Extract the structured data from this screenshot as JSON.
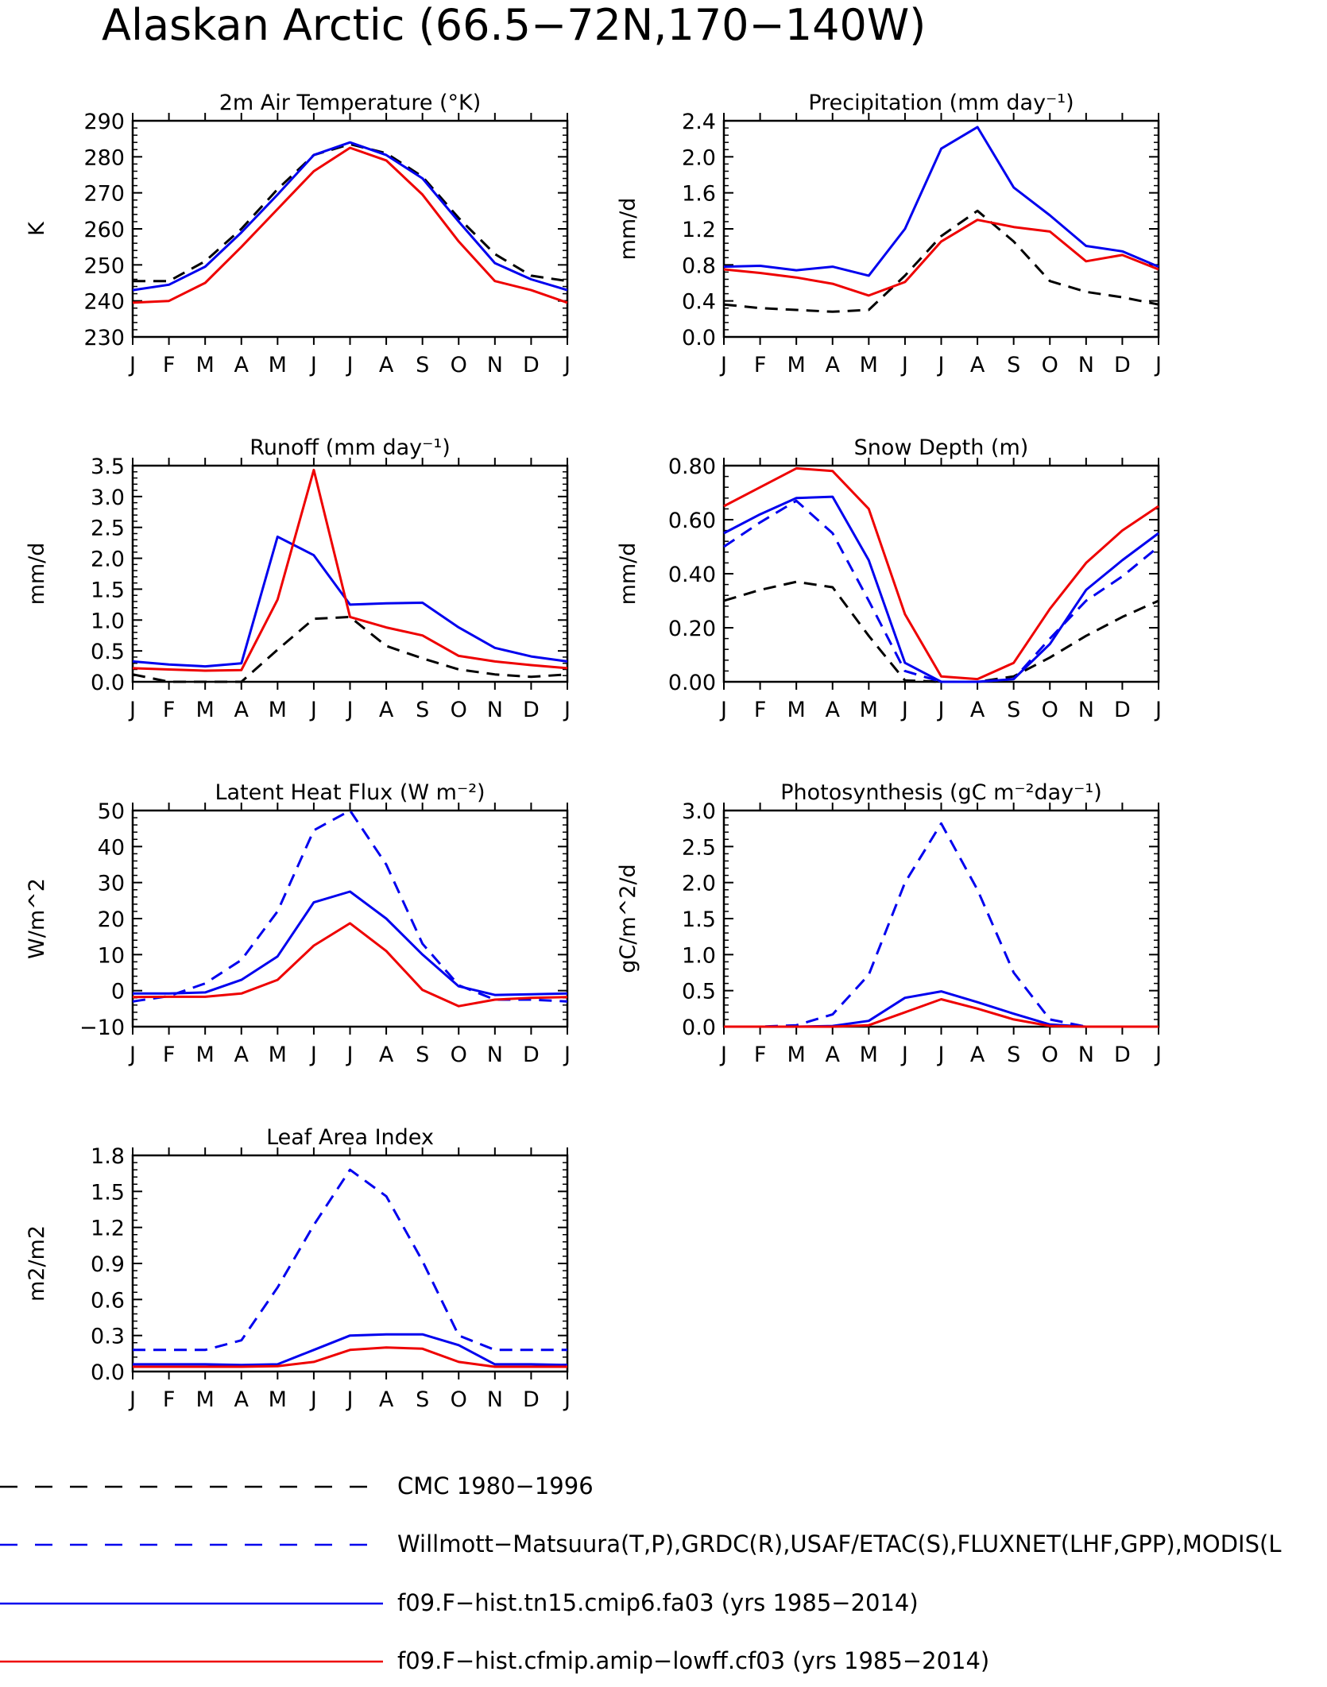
{
  "page_title": "Alaskan Arctic (66.5−72N,170−140W)",
  "series_styles": [
    {
      "key": "obs1",
      "color": "#000000",
      "dash": true
    },
    {
      "key": "obs2",
      "color": "#0000ee",
      "dash": true
    },
    {
      "key": "m1",
      "color": "#0000ee",
      "dash": false
    },
    {
      "key": "m2",
      "color": "#ee0000",
      "dash": false
    }
  ],
  "legend": [
    {
      "key": "obs1",
      "label": "CMC 1980−1996"
    },
    {
      "key": "obs2",
      "label": "Willmott−Matsuura(T,P),GRDC(R),USAF/ETAC(S),FLUXNET(LHF,GPP),MODIS(L"
    },
    {
      "key": "m1",
      "label": "f09.F−hist.tn15.cmip6.fa03 (yrs 1985−2014)"
    },
    {
      "key": "m2",
      "label": "f09.F−hist.cfmip.amip−lowff.cf03 (yrs 1985−2014)"
    }
  ],
  "chart_data": [
    {
      "type": "line",
      "title": "2m Air Temperature (°K)",
      "ylabel": "K",
      "ylim": [
        230,
        290
      ],
      "yticks": [
        "230",
        "240",
        "250",
        "260",
        "270",
        "280",
        "290"
      ],
      "categories": [
        "J",
        "F",
        "M",
        "A",
        "M",
        "J",
        "J",
        "A",
        "S",
        "O",
        "N",
        "D",
        "J"
      ],
      "series": [
        {
          "key": "obs1",
          "values": [
            245.5,
            245.5,
            251,
            260,
            271,
            280.5,
            283.5,
            281,
            274.5,
            263,
            253,
            247,
            245.5
          ]
        },
        {
          "key": "m1",
          "values": [
            243,
            244.5,
            249.5,
            259,
            269.5,
            280.5,
            284,
            280.5,
            274,
            262,
            250.5,
            246,
            243
          ]
        },
        {
          "key": "m2",
          "values": [
            239.5,
            240,
            245,
            255,
            265.5,
            276,
            282.5,
            279,
            269.5,
            256.5,
            245.5,
            243,
            239.5
          ]
        }
      ]
    },
    {
      "type": "line",
      "title": "Precipitation (mm day⁻¹)",
      "ylabel": "mm/d",
      "ylim": [
        0,
        2.4
      ],
      "yticks": [
        "0.0",
        "0.4",
        "0.8",
        "1.2",
        "1.6",
        "2.0",
        "2.4"
      ],
      "categories": [
        "J",
        "F",
        "M",
        "A",
        "M",
        "J",
        "J",
        "A",
        "S",
        "O",
        "N",
        "D",
        "J"
      ],
      "series": [
        {
          "key": "obs1",
          "values": [
            0.36,
            0.32,
            0.3,
            0.28,
            0.3,
            0.68,
            1.12,
            1.4,
            1.06,
            0.62,
            0.5,
            0.44,
            0.36
          ]
        },
        {
          "key": "m1",
          "values": [
            0.78,
            0.79,
            0.74,
            0.78,
            0.68,
            1.2,
            2.09,
            2.33,
            1.66,
            1.35,
            1.01,
            0.95,
            0.78
          ]
        },
        {
          "key": "m2",
          "values": [
            0.75,
            0.71,
            0.66,
            0.59,
            0.46,
            0.61,
            1.06,
            1.3,
            1.22,
            1.17,
            0.84,
            0.91,
            0.75
          ]
        }
      ]
    },
    {
      "type": "line",
      "title": "Runoff (mm day⁻¹)",
      "ylabel": "mm/d",
      "ylim": [
        0,
        3.5
      ],
      "yticks": [
        "0.0",
        "0.5",
        "1.0",
        "1.5",
        "2.0",
        "2.5",
        "3.0",
        "3.5"
      ],
      "categories": [
        "J",
        "F",
        "M",
        "A",
        "M",
        "J",
        "J",
        "A",
        "S",
        "O",
        "N",
        "D",
        "J"
      ],
      "series": [
        {
          "key": "obs1",
          "values": [
            0.12,
            0.0,
            0.0,
            0.0,
            0.52,
            1.02,
            1.05,
            0.58,
            0.38,
            0.2,
            0.12,
            0.08,
            0.12
          ]
        },
        {
          "key": "m1",
          "values": [
            0.33,
            0.28,
            0.25,
            0.3,
            2.35,
            2.05,
            1.25,
            1.27,
            1.28,
            0.88,
            0.55,
            0.41,
            0.33
          ]
        },
        {
          "key": "m2",
          "values": [
            0.22,
            0.2,
            0.18,
            0.19,
            1.33,
            3.43,
            1.05,
            0.88,
            0.75,
            0.42,
            0.33,
            0.27,
            0.22
          ]
        }
      ]
    },
    {
      "type": "line",
      "title": "Snow Depth (m)",
      "ylabel": "mm/d",
      "ylim": [
        0,
        0.8
      ],
      "yticks": [
        "0.00",
        "0.20",
        "0.40",
        "0.60",
        "0.80"
      ],
      "categories": [
        "J",
        "F",
        "M",
        "A",
        "M",
        "J",
        "J",
        "A",
        "S",
        "O",
        "N",
        "D",
        "J"
      ],
      "series": [
        {
          "key": "obs1",
          "values": [
            0.3,
            0.34,
            0.37,
            0.35,
            0.17,
            0.005,
            0.0,
            0.0,
            0.02,
            0.09,
            0.17,
            0.24,
            0.3
          ]
        },
        {
          "key": "obs2",
          "values": [
            0.5,
            0.59,
            0.67,
            0.55,
            0.3,
            0.04,
            0.0,
            0.0,
            0.01,
            0.16,
            0.3,
            0.39,
            0.5
          ]
        },
        {
          "key": "m1",
          "values": [
            0.55,
            0.62,
            0.68,
            0.685,
            0.45,
            0.07,
            0.0,
            0.0,
            0.01,
            0.14,
            0.34,
            0.45,
            0.55
          ]
        },
        {
          "key": "m2",
          "values": [
            0.65,
            0.72,
            0.79,
            0.78,
            0.64,
            0.25,
            0.02,
            0.01,
            0.07,
            0.27,
            0.44,
            0.56,
            0.65
          ]
        }
      ]
    },
    {
      "type": "line",
      "title": "Latent Heat Flux (W m⁻²)",
      "ylabel": "W/m^2",
      "ylim": [
        -10,
        50
      ],
      "yticks": [
        "−10",
        "0",
        "10",
        "20",
        "30",
        "40",
        "50"
      ],
      "categories": [
        "J",
        "F",
        "M",
        "A",
        "M",
        "J",
        "J",
        "A",
        "S",
        "O",
        "N",
        "D",
        "J"
      ],
      "series": [
        {
          "key": "obs2",
          "values": [
            -3,
            -1.5,
            2,
            8.5,
            22,
            44.5,
            50,
            35,
            13,
            1.5,
            -2.5,
            -2.5,
            -3
          ]
        },
        {
          "key": "m1",
          "values": [
            -0.8,
            -0.8,
            -0.5,
            3,
            9.5,
            24.5,
            27.5,
            20,
            10,
            1.2,
            -1.2,
            -1,
            -0.8
          ]
        },
        {
          "key": "m2",
          "values": [
            -1.8,
            -1.7,
            -1.7,
            -0.8,
            3,
            12.5,
            18.7,
            11,
            0.2,
            -4.3,
            -2.5,
            -2,
            -1.8
          ]
        }
      ]
    },
    {
      "type": "line",
      "title": "Photosynthesis (gC m⁻²day⁻¹)",
      "ylabel": "gC/m^2/d",
      "ylim": [
        0,
        3.0
      ],
      "yticks": [
        "0.0",
        "0.5",
        "1.0",
        "1.5",
        "2.0",
        "2.5",
        "3.0"
      ],
      "categories": [
        "J",
        "F",
        "M",
        "A",
        "M",
        "J",
        "J",
        "A",
        "S",
        "O",
        "N",
        "D",
        "J"
      ],
      "series": [
        {
          "key": "obs2",
          "values": [
            0.0,
            0.0,
            0.02,
            0.17,
            0.72,
            2.0,
            2.82,
            1.9,
            0.75,
            0.1,
            0.0,
            0.0,
            0.0
          ]
        },
        {
          "key": "m1",
          "values": [
            0.0,
            0.0,
            0.0,
            0.01,
            0.08,
            0.4,
            0.49,
            0.34,
            0.18,
            0.03,
            0.0,
            0.0,
            0.0
          ]
        },
        {
          "key": "m2",
          "values": [
            0.0,
            0.0,
            0.0,
            0.0,
            0.02,
            0.2,
            0.38,
            0.25,
            0.1,
            0.01,
            0.0,
            0.0,
            0.0
          ]
        }
      ]
    },
    {
      "type": "line",
      "title": "Leaf Area Index",
      "ylabel": "m2/m2",
      "ylim": [
        0,
        1.8
      ],
      "yticks": [
        "0.0",
        "0.3",
        "0.6",
        "0.9",
        "1.2",
        "1.5",
        "1.8"
      ],
      "categories": [
        "J",
        "F",
        "M",
        "A",
        "M",
        "J",
        "J",
        "A",
        "S",
        "O",
        "N",
        "D",
        "J"
      ],
      "series": [
        {
          "key": "obs2",
          "values": [
            0.18,
            0.18,
            0.18,
            0.26,
            0.7,
            1.22,
            1.68,
            1.46,
            0.92,
            0.3,
            0.18,
            0.18,
            0.18
          ]
        },
        {
          "key": "m1",
          "values": [
            0.06,
            0.06,
            0.06,
            0.055,
            0.06,
            0.18,
            0.3,
            0.31,
            0.31,
            0.22,
            0.06,
            0.06,
            0.055
          ]
        },
        {
          "key": "m2",
          "values": [
            0.04,
            0.04,
            0.04,
            0.04,
            0.045,
            0.08,
            0.18,
            0.2,
            0.19,
            0.08,
            0.04,
            0.04,
            0.04
          ]
        }
      ]
    }
  ]
}
